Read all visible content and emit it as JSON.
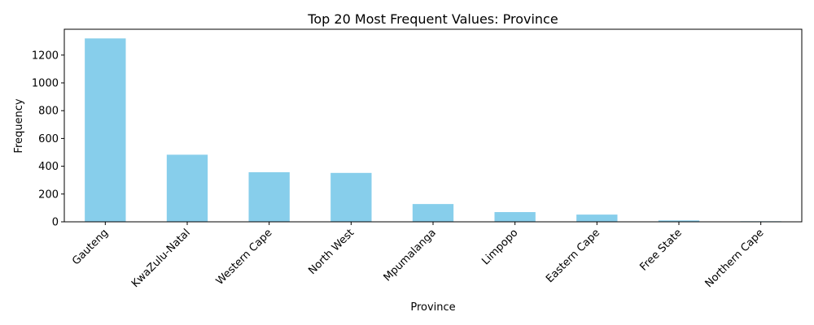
{
  "chart_data": {
    "type": "bar",
    "title": "Top 20 Most Frequent Values: Province",
    "xlabel": "Province",
    "ylabel": "Frequency",
    "categories": [
      "Gauteng",
      "KwaZulu-Natal",
      "Western Cape",
      "North West",
      "Mpumalanga",
      "Limpopo",
      "Eastern Cape",
      "Free State",
      "Northern Cape"
    ],
    "values": [
      1320,
      483,
      357,
      352,
      128,
      70,
      52,
      10,
      4
    ],
    "ylim": [
      0,
      1386
    ],
    "yticks": [
      0,
      200,
      400,
      600,
      800,
      1000,
      1200
    ],
    "grid": false,
    "legend": "none",
    "bar_color": "#87ceeb"
  }
}
